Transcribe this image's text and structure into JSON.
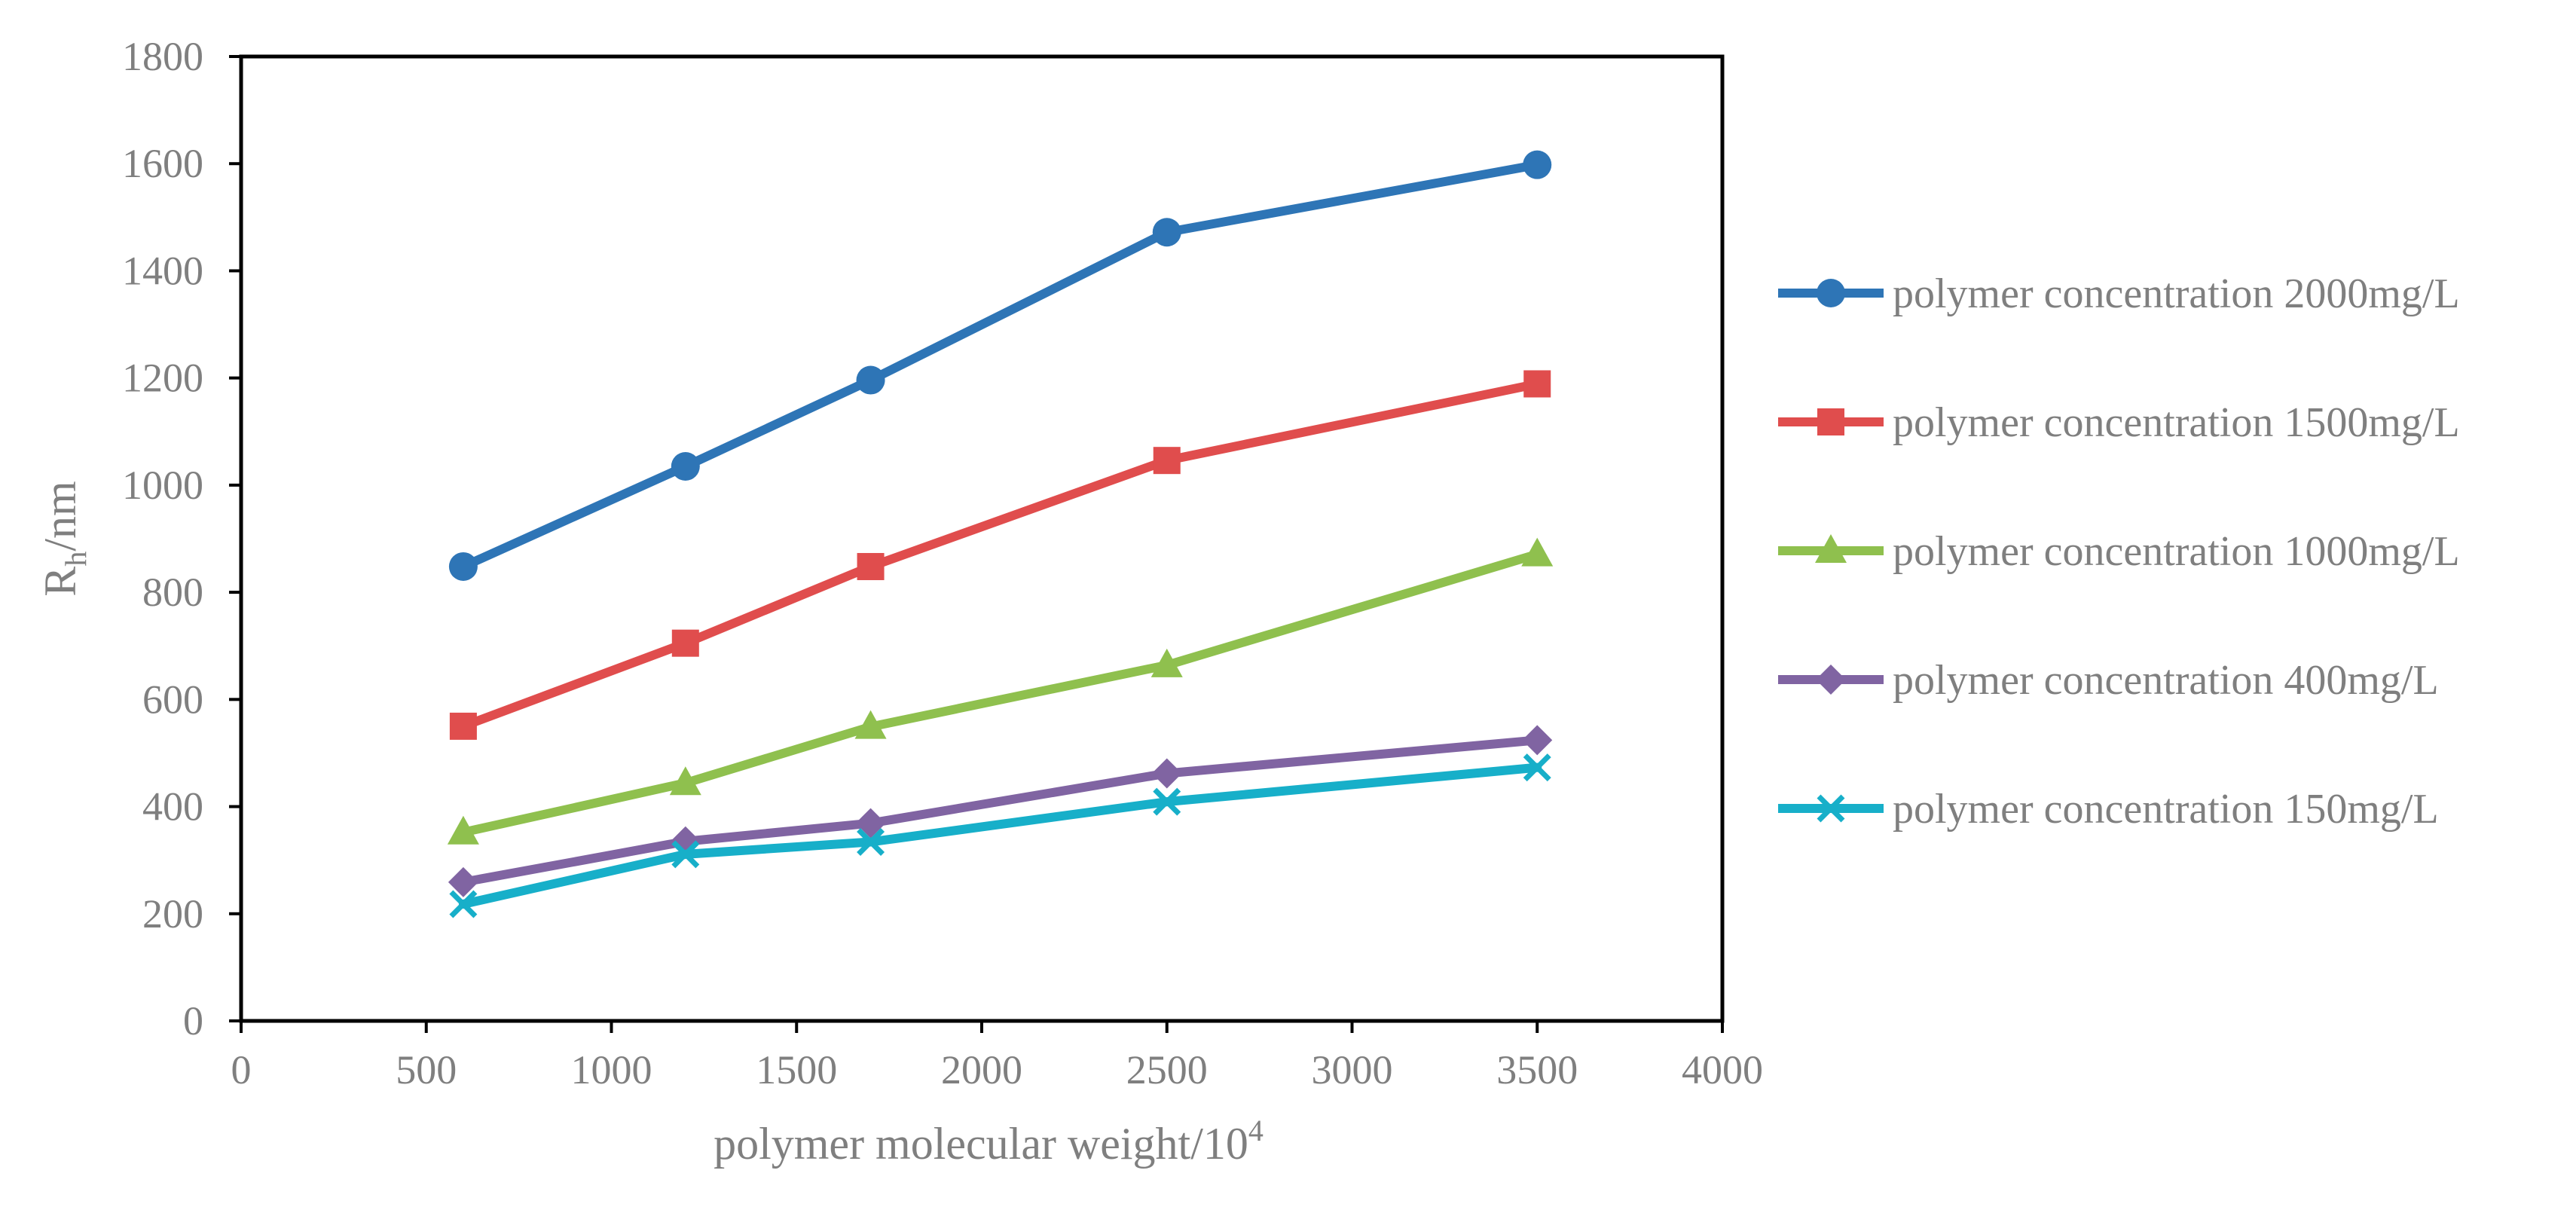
{
  "chart_data": {
    "type": "line",
    "title": "",
    "xlabel": "polymer molecular weight/10",
    "xlabel_sup": "4",
    "ylabel": "R",
    "ylabel_sub": "h",
    "ylabel_suffix": "/nm",
    "xlim": [
      0,
      4000
    ],
    "ylim": [
      0,
      1800
    ],
    "xticks": [
      0,
      500,
      1000,
      1500,
      2000,
      2500,
      3000,
      3500,
      4000
    ],
    "yticks": [
      0,
      200,
      400,
      600,
      800,
      1000,
      1200,
      1400,
      1600,
      1800
    ],
    "grid": false,
    "legend_position": "right",
    "x": [
      600,
      1200,
      1700,
      2500,
      3500
    ],
    "series": [
      {
        "name": "polymer concentration 2000mg/L",
        "color": "#2E75B6",
        "marker": "circle",
        "values": [
          848,
          1035,
          1196,
          1472,
          1598
        ]
      },
      {
        "name": "polymer concentration 1500mg/L",
        "color": "#E04D4D",
        "marker": "square",
        "values": [
          550,
          705,
          848,
          1046,
          1189
        ]
      },
      {
        "name": "polymer concentration 1000mg/L",
        "color": "#8FC04E",
        "marker": "triangle",
        "values": [
          352,
          444,
          549,
          664,
          871
        ]
      },
      {
        "name": "polymer concentration 400mg/L",
        "color": "#8064A2",
        "marker": "diamond",
        "values": [
          259,
          335,
          369,
          462,
          524
        ]
      },
      {
        "name": "polymer concentration 150mg/L",
        "color": "#17AFC9",
        "marker": "x",
        "values": [
          218,
          311,
          334,
          409,
          473
        ]
      }
    ]
  }
}
